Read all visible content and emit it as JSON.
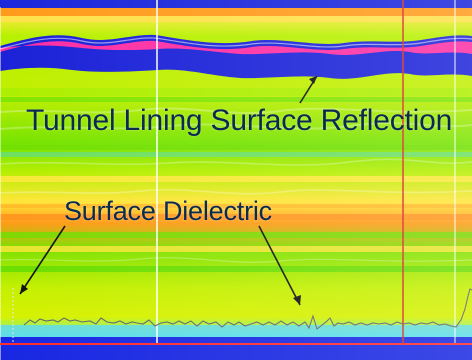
{
  "annotations": {
    "tunnel_lining": "Tunnel Lining Surface Reflection",
    "surface_dielectric": "Surface Dielectric"
  },
  "colors": {
    "background_green": "#c8f000",
    "reflection_blue": "#1320d8",
    "reflection_magenta": "#ff2ea3",
    "cyan_band": "#26d7e7",
    "yellow_band": "#ffe53b",
    "orange_band": "#ff9c1b",
    "red_border": "#d71e1e",
    "trace_gray": "#6e6e6e",
    "text_color": "#0b2a52"
  }
}
